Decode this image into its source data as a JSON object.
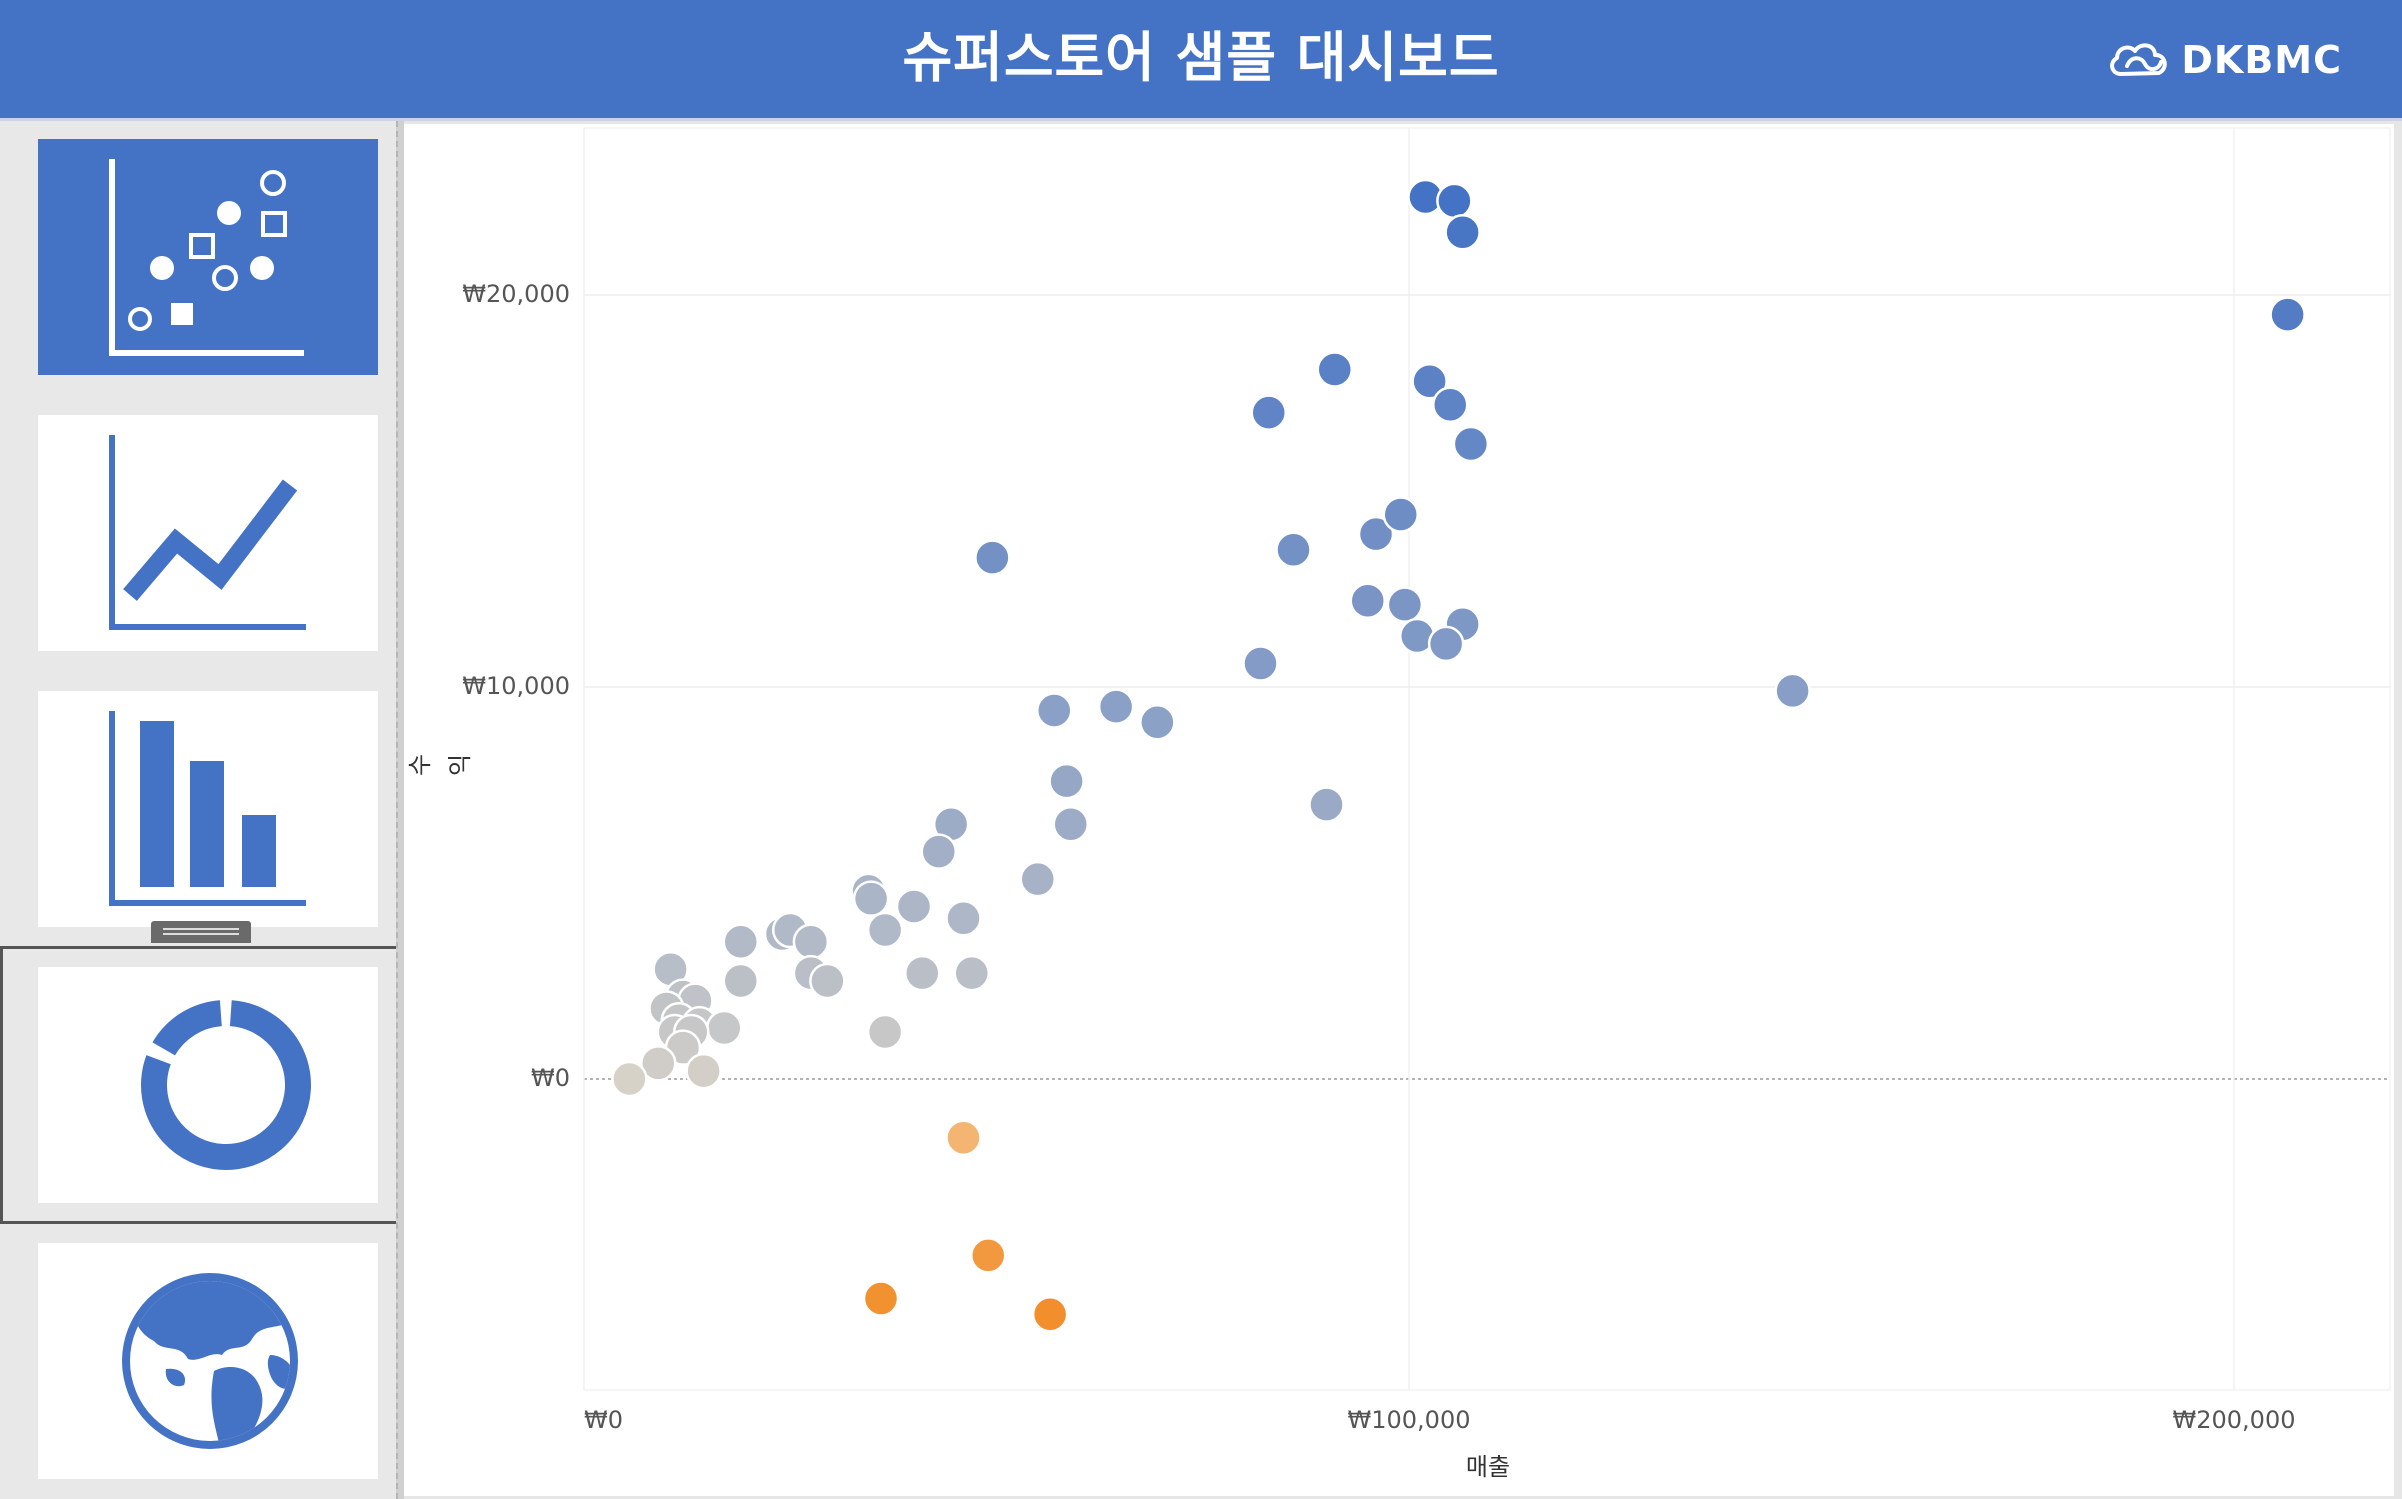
{
  "header": {
    "title": "슈퍼스토어 샘플 대시보드",
    "logo_text": "DKBMC",
    "background": "#4472c4"
  },
  "sidebar": {
    "items": [
      {
        "icon": "scatter-chart-icon",
        "active": true
      },
      {
        "icon": "line-chart-icon",
        "active": false
      },
      {
        "icon": "bar-chart-icon",
        "active": false
      },
      {
        "icon": "donut-chart-icon",
        "active": false,
        "selected": true
      },
      {
        "icon": "globe-icon",
        "active": false
      }
    ],
    "accent": "#4472c4"
  },
  "float_controls": {
    "close_icon": "close-icon",
    "menu_icon": "caret-down-icon"
  },
  "chart_data": {
    "type": "scatter",
    "title": "",
    "xlabel": "매출",
    "ylabel": "수익",
    "xlim": [
      0,
      215000
    ],
    "ylim": [
      -8000,
      23500
    ],
    "x_ticks": [
      {
        "value": 0,
        "label": "₩0"
      },
      {
        "value": 100000,
        "label": "₩100,000"
      },
      {
        "value": 200000,
        "label": "₩200,000"
      }
    ],
    "y_ticks": [
      {
        "value": 0,
        "label": "₩0"
      },
      {
        "value": 10000,
        "label": "₩10,000"
      },
      {
        "value": 20000,
        "label": "₩20,000"
      }
    ],
    "grid": true,
    "color_scale": {
      "negative": "#f28e2b",
      "zero": "#d7d2c8",
      "positive": "#4472c4"
    },
    "points": [
      [
        102000,
        22500
      ],
      [
        105500,
        22400
      ],
      [
        106500,
        21600
      ],
      [
        206500,
        19500
      ],
      [
        91000,
        18100
      ],
      [
        83000,
        17000
      ],
      [
        102500,
        17800
      ],
      [
        105000,
        17200
      ],
      [
        107500,
        16200
      ],
      [
        49500,
        13300
      ],
      [
        86000,
        13500
      ],
      [
        96000,
        13900
      ],
      [
        99000,
        14400
      ],
      [
        95000,
        12200
      ],
      [
        99500,
        12100
      ],
      [
        101000,
        11300
      ],
      [
        106500,
        11600
      ],
      [
        104500,
        11100
      ],
      [
        82000,
        10600
      ],
      [
        146500,
        9900
      ],
      [
        57000,
        9400
      ],
      [
        64500,
        9500
      ],
      [
        69500,
        9100
      ],
      [
        58500,
        7600
      ],
      [
        59000,
        6500
      ],
      [
        90000,
        7000
      ],
      [
        44500,
        6500
      ],
      [
        43000,
        5800
      ],
      [
        55000,
        5100
      ],
      [
        34500,
        4800
      ],
      [
        34800,
        4600
      ],
      [
        40000,
        4400
      ],
      [
        46000,
        4100
      ],
      [
        36500,
        3800
      ],
      [
        24000,
        3700
      ],
      [
        25000,
        3800
      ],
      [
        27500,
        3500
      ],
      [
        19000,
        3500
      ],
      [
        41000,
        2700
      ],
      [
        47000,
        2700
      ],
      [
        27500,
        2700
      ],
      [
        29500,
        2500
      ],
      [
        19000,
        2500
      ],
      [
        10500,
        2800
      ],
      [
        12000,
        2100
      ],
      [
        13500,
        2000
      ],
      [
        10000,
        1800
      ],
      [
        11500,
        1500
      ],
      [
        14000,
        1400
      ],
      [
        17000,
        1300
      ],
      [
        11000,
        1200
      ],
      [
        13000,
        1200
      ],
      [
        12000,
        800
      ],
      [
        36500,
        1200
      ],
      [
        9000,
        400
      ],
      [
        14500,
        200
      ],
      [
        5500,
        0
      ],
      [
        46000,
        -1500
      ],
      [
        49000,
        -4500
      ],
      [
        36000,
        -5600
      ],
      [
        56500,
        -6000
      ]
    ]
  }
}
